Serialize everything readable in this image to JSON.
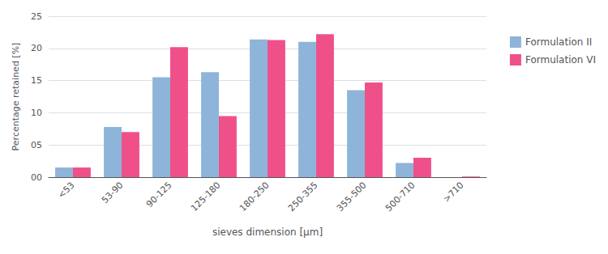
{
  "chart_data": {
    "type": "bar",
    "xlabel": "sieves dimension [μm]",
    "ylabel": "Percentage retained [%]",
    "categories": [
      "<53",
      "53-90",
      "90-125",
      "125-180",
      "180-250",
      "250-355",
      "355-500",
      "500-710",
      ">710"
    ],
    "series": [
      {
        "name": "Formulation II",
        "color": "#8EB4D9",
        "values": [
          1.5,
          7.8,
          15.5,
          16.3,
          21.4,
          21.0,
          13.5,
          2.2,
          0.0
        ]
      },
      {
        "name": "Formulation VI",
        "color": "#F0508A",
        "values": [
          1.5,
          7.0,
          20.2,
          9.5,
          21.3,
          22.2,
          14.7,
          3.0,
          0.1
        ]
      }
    ],
    "ylim": [
      0,
      25
    ],
    "yticks": [
      {
        "value": 0,
        "label": "00"
      },
      {
        "value": 5,
        "label": "05"
      },
      {
        "value": 10,
        "label": "10"
      },
      {
        "value": 15,
        "label": "15"
      },
      {
        "value": 20,
        "label": "20"
      },
      {
        "value": 25,
        "label": "25"
      }
    ],
    "grid": true,
    "legend": "right"
  }
}
